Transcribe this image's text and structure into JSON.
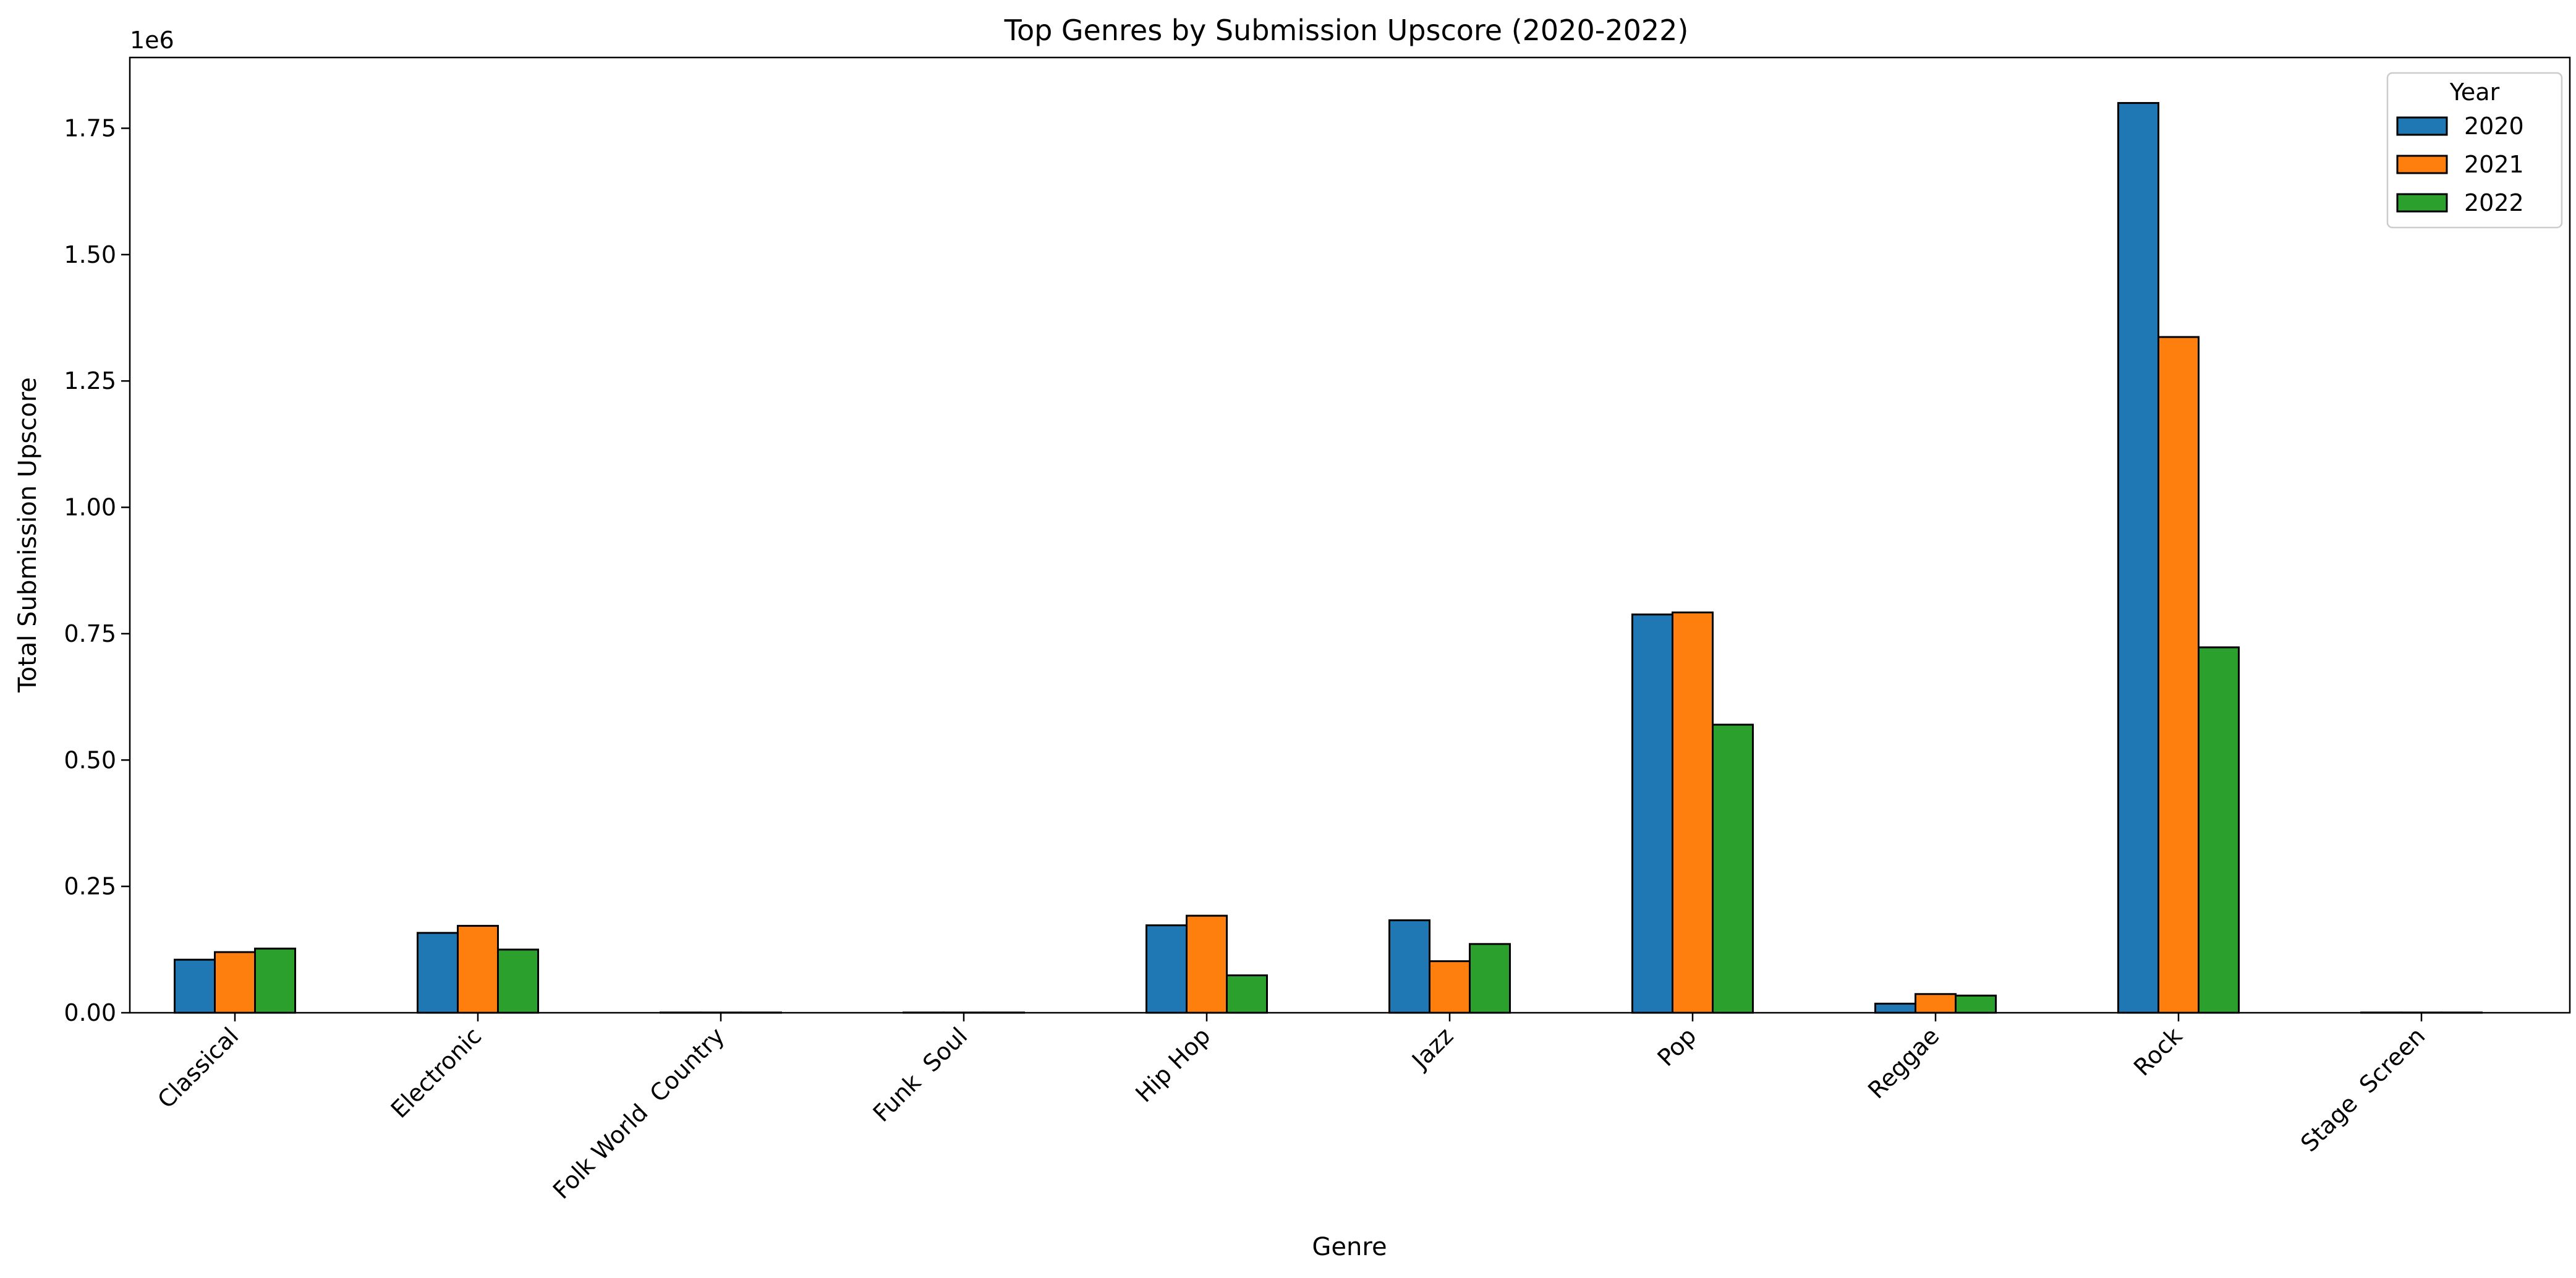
{
  "chart_data": {
    "type": "bar",
    "title": "Top Genres by Submission Upscore (2020-2022)",
    "xlabel": "Genre",
    "ylabel": "Total Submission Upscore",
    "y_offset_label": "1e6",
    "categories": [
      "Classical",
      "Electronic",
      "Folk World  Country",
      "Funk  Soul",
      "Hip Hop",
      "Jazz",
      "Pop",
      "Reggae",
      "Rock",
      "Stage  Screen"
    ],
    "series": [
      {
        "name": "2020",
        "color": "#1f77b4",
        "values": [
          105000,
          158000,
          500,
          500,
          173000,
          183000,
          788000,
          18000,
          1800000,
          500
        ]
      },
      {
        "name": "2021",
        "color": "#ff7f0e",
        "values": [
          120000,
          172000,
          500,
          500,
          192000,
          102000,
          792000,
          37000,
          1337000,
          500
        ]
      },
      {
        "name": "2022",
        "color": "#2ca02c",
        "values": [
          127000,
          125000,
          500,
          500,
          74000,
          136000,
          570000,
          34000,
          723000,
          500
        ]
      }
    ],
    "ylim": [
      0,
      1890000
    ],
    "y_ticks": [
      0,
      250000,
      500000,
      750000,
      1000000,
      1250000,
      1500000,
      1750000
    ],
    "y_tick_labels": [
      "0.00",
      "0.25",
      "0.50",
      "0.75",
      "1.00",
      "1.25",
      "1.50",
      "1.75"
    ],
    "legend": {
      "title": "Year",
      "position": "top-right"
    },
    "grid": false
  }
}
